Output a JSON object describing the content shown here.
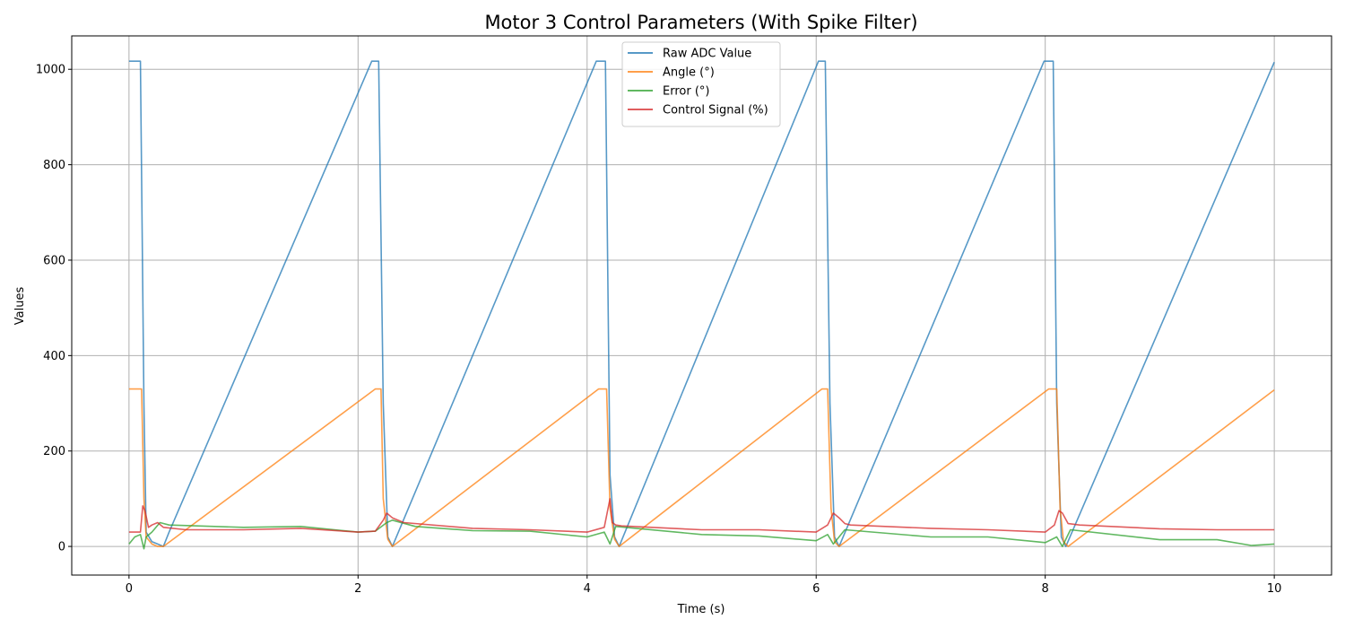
{
  "chart_data": {
    "type": "line",
    "title": "Motor 3 Control Parameters (With Spike Filter)",
    "xlabel": "Time (s)",
    "ylabel": "Values",
    "xlim": [
      -0.5,
      10.5
    ],
    "ylim": [
      -60,
      1070
    ],
    "xticks": [
      0,
      2,
      4,
      6,
      8,
      10
    ],
    "yticks": [
      0,
      200,
      400,
      600,
      800,
      1000
    ],
    "grid": true,
    "legend": "top-center",
    "series": [
      {
        "name": "Raw ADC Value",
        "color": "#1f77b4",
        "x": [
          0,
          0.08,
          0.1,
          0.13,
          0.15,
          0.2,
          0.25,
          0.3,
          0.35,
          2.12,
          2.15,
          2.18,
          2.22,
          2.26,
          2.3,
          4.08,
          4.12,
          4.16,
          4.2,
          4.24,
          4.28,
          6.02,
          6.05,
          6.08,
          6.12,
          6.16,
          6.2,
          7.99,
          8.03,
          8.07,
          8.1,
          8.14,
          8.18,
          10.0
        ],
        "y": [
          1017,
          1017,
          1017,
          300,
          30,
          10,
          5,
          0,
          30,
          1017,
          1017,
          1017,
          300,
          20,
          0,
          1017,
          1017,
          1017,
          150,
          20,
          0,
          1017,
          1017,
          1017,
          300,
          20,
          0,
          1017,
          1017,
          1017,
          300,
          20,
          0,
          1015
        ]
      },
      {
        "name": "Angle (°)",
        "color": "#ff7f0e",
        "x": [
          0,
          0.08,
          0.11,
          0.13,
          0.15,
          0.2,
          0.25,
          0.3,
          2.15,
          2.18,
          2.2,
          2.22,
          2.26,
          2.3,
          4.1,
          4.15,
          4.17,
          4.2,
          4.24,
          4.28,
          6.05,
          6.08,
          6.1,
          6.13,
          6.16,
          6.2,
          8.03,
          8.07,
          8.1,
          8.13,
          8.16,
          8.2,
          10.0
        ],
        "y": [
          330,
          330,
          330,
          100,
          20,
          5,
          0,
          0,
          330,
          330,
          330,
          100,
          15,
          0,
          330,
          330,
          330,
          80,
          15,
          0,
          330,
          330,
          330,
          80,
          10,
          0,
          330,
          330,
          330,
          80,
          10,
          0,
          328
        ]
      },
      {
        "name": "Error (°)",
        "color": "#2ca02c",
        "x": [
          0,
          0.05,
          0.1,
          0.13,
          0.15,
          0.2,
          0.27,
          0.35,
          1.0,
          1.5,
          2.0,
          2.15,
          2.25,
          2.3,
          2.5,
          3.0,
          3.5,
          4.0,
          4.15,
          4.2,
          4.25,
          5.0,
          5.5,
          6.0,
          6.1,
          6.15,
          6.25,
          7.0,
          7.5,
          8.0,
          8.1,
          8.15,
          8.22,
          9.0,
          9.5,
          9.8,
          10.0
        ],
        "y": [
          5,
          20,
          25,
          -5,
          20,
          30,
          50,
          45,
          40,
          42,
          30,
          32,
          50,
          55,
          42,
          33,
          32,
          20,
          30,
          5,
          42,
          25,
          22,
          12,
          25,
          5,
          35,
          20,
          20,
          8,
          20,
          0,
          35,
          14,
          14,
          2,
          5
        ]
      },
      {
        "name": "Control Signal (%)",
        "color": "#d62728",
        "x": [
          0,
          0.1,
          0.12,
          0.14,
          0.17,
          0.2,
          0.25,
          0.3,
          0.5,
          1.0,
          1.5,
          2.0,
          2.15,
          2.22,
          2.25,
          2.3,
          2.4,
          3.0,
          3.5,
          4.0,
          4.15,
          4.2,
          4.22,
          4.25,
          4.3,
          5.0,
          5.5,
          6.0,
          6.1,
          6.15,
          6.2,
          6.25,
          6.3,
          7.0,
          7.5,
          8.0,
          8.08,
          8.12,
          8.15,
          8.2,
          8.3,
          9.0,
          9.5,
          10.0
        ],
        "y": [
          30,
          30,
          85,
          75,
          40,
          45,
          50,
          40,
          35,
          35,
          38,
          30,
          32,
          55,
          70,
          60,
          50,
          38,
          35,
          30,
          40,
          100,
          50,
          45,
          43,
          35,
          35,
          30,
          45,
          70,
          60,
          48,
          45,
          38,
          35,
          30,
          45,
          75,
          70,
          48,
          45,
          37,
          35,
          35
        ]
      }
    ]
  }
}
